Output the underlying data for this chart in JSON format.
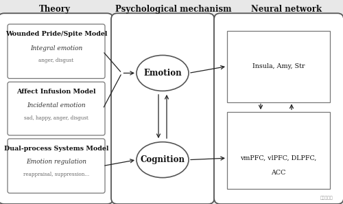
{
  "fig_bg": "#e8e8e8",
  "col1_header": "Theory",
  "col2_header": "Psychological mechanism",
  "col3_header": "Neural network",
  "box1_bold": "Wounded Pride/Spite Model",
  "box1_line2": "Integral emotion",
  "box1_line3": "anger, disgust",
  "box2_bold": "Affect Infusion Model",
  "box2_line2": "Incidental emotion",
  "box2_line3": "sad, happy, anger, disgust",
  "box3_bold": "Dual-process Systems Model",
  "box3_line2": "Emotion regulation",
  "box3_line3": "reappraisal, suppression...",
  "oval1_label": "Emotion",
  "oval2_label": "Cognition",
  "nn_box1_label": "Insula, Amy, Str",
  "nn_box2_line1": "vmPFC, vlPFC, DLPFC,",
  "nn_box2_line2": "ACC",
  "watermark": "中国高科技",
  "outer_edge": "#555555",
  "inner_edge": "#777777",
  "arrow_color": "#222222",
  "header_fontsize": 8.5,
  "bold_fontsize": 6.8,
  "italic_fontsize": 6.5,
  "small_fontsize": 5.2,
  "oval_fontsize": 8.5,
  "nn_fontsize": 6.8
}
